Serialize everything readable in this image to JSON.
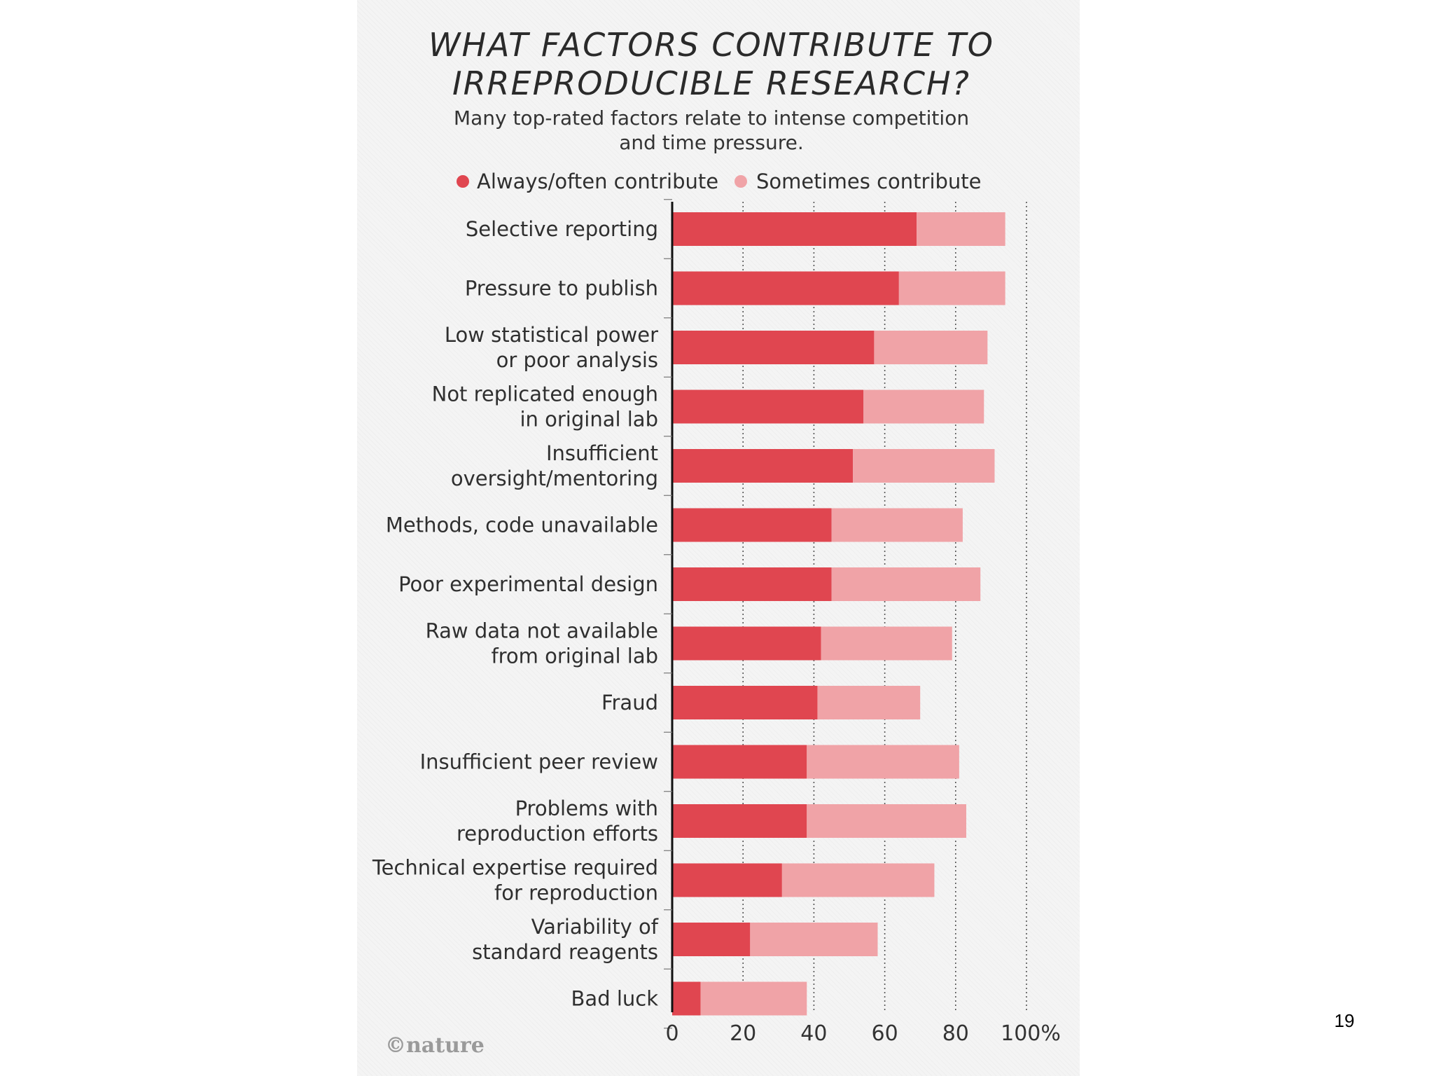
{
  "slide": {
    "page_number": "19"
  },
  "logo": {
    "text": "©nature"
  },
  "colors": {
    "always": "#e04650",
    "sometimes": "#f0a3a7",
    "axis": "#111111",
    "grid": "#555555"
  },
  "chart_data": {
    "type": "bar",
    "orientation": "horizontal",
    "stacked": true,
    "title_lines": [
      "WHAT FACTORS CONTRIBUTE TO",
      "IRREPRODUCIBLE RESEARCH?"
    ],
    "subtitle_lines": [
      "Many top-rated factors relate to intense competition",
      "and time pressure."
    ],
    "legend_position": "top",
    "categories": [
      [
        "Selective reporting"
      ],
      [
        "Pressure to publish"
      ],
      [
        "Low statistical power",
        "or poor analysis"
      ],
      [
        "Not replicated enough",
        "in original lab"
      ],
      [
        "Insufficient",
        "oversight/mentoring"
      ],
      [
        "Methods, code unavailable"
      ],
      [
        "Poor experimental design"
      ],
      [
        "Raw data not available",
        "from original lab"
      ],
      [
        "Fraud"
      ],
      [
        "Insufficient peer review"
      ],
      [
        "Problems with",
        "reproduction efforts"
      ],
      [
        "Technical expertise required",
        "for reproduction"
      ],
      [
        "Variability of",
        "standard reagents"
      ],
      [
        "Bad luck"
      ]
    ],
    "series": [
      {
        "name": "Always/often contribute",
        "color": "#e04650",
        "values": [
          69,
          64,
          57,
          54,
          51,
          45,
          45,
          42,
          41,
          38,
          38,
          31,
          22,
          8
        ]
      },
      {
        "name": "Sometimes contribute",
        "color": "#f0a3a7",
        "values": [
          25,
          30,
          32,
          34,
          40,
          37,
          42,
          37,
          29,
          43,
          45,
          43,
          36,
          30
        ]
      }
    ],
    "x_ticks": [
      "0",
      "20",
      "40",
      "60",
      "80",
      "100%"
    ],
    "xlim": [
      0,
      100
    ],
    "grid": true
  }
}
